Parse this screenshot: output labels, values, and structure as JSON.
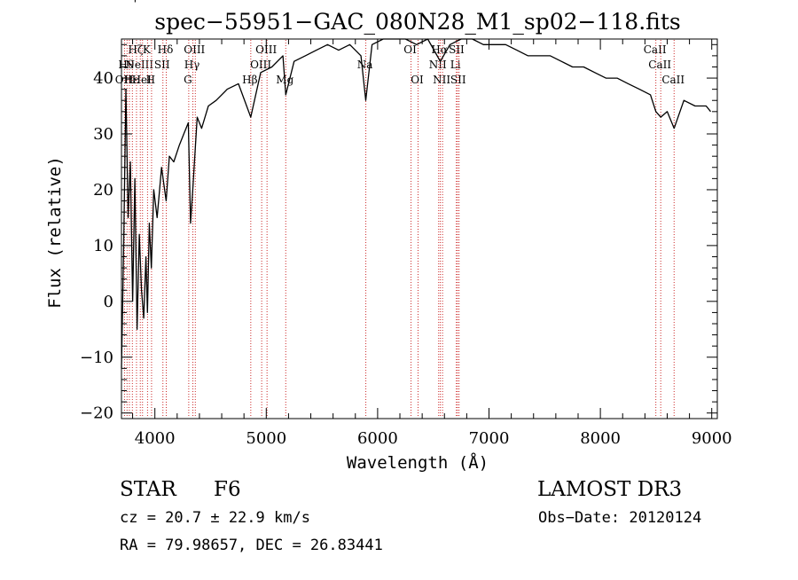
{
  "chart_data": {
    "type": "line",
    "title": "spec−55951−GAC_080N28_M1_sp02−118.fits",
    "xlabel": "Wavelength (Å)",
    "ylabel": "Flux (relative)",
    "xlim": [
      3700,
      9050
    ],
    "ylim": [
      -21,
      47
    ],
    "xticks": [
      4000,
      5000,
      6000,
      7000,
      8000,
      9000
    ],
    "xtick_labels": [
      "4000",
      "5000",
      "6000",
      "7000",
      "8000",
      "9000"
    ],
    "yticks": [
      -20,
      -10,
      0,
      10,
      20,
      30,
      40
    ],
    "ytick_labels": [
      "−20",
      "−10",
      "0",
      "10",
      "20",
      "30",
      "40"
    ],
    "series": [
      {
        "name": "flux",
        "x": [
          3700,
          3720,
          3740,
          3760,
          3780,
          3800,
          3820,
          3840,
          3860,
          3880,
          3900,
          3920,
          3933,
          3950,
          3968,
          3990,
          4020,
          4060,
          4101,
          4130,
          4170,
          4220,
          4260,
          4300,
          4320,
          4340,
          4380,
          4420,
          4480,
          4550,
          4650,
          4750,
          4861,
          4950,
          5050,
          5150,
          5175,
          5250,
          5350,
          5450,
          5550,
          5650,
          5750,
          5850,
          5893,
          5950,
          6050,
          6150,
          6250,
          6350,
          6450,
          6563,
          6650,
          6750,
          6850,
          6950,
          7050,
          7150,
          7250,
          7350,
          7450,
          7550,
          7650,
          7750,
          7850,
          7950,
          8050,
          8150,
          8250,
          8350,
          8450,
          8498,
          8542,
          8600,
          8662,
          8750,
          8850,
          8950,
          8990
        ],
        "y": [
          -12,
          10,
          38,
          15,
          25,
          0,
          22,
          -5,
          12,
          2,
          -3,
          8,
          -2,
          14,
          6,
          20,
          15,
          24,
          18,
          26,
          25,
          28,
          30,
          32,
          14,
          20,
          33,
          31,
          35,
          36,
          38,
          39,
          33,
          41,
          42,
          44,
          37,
          43,
          44,
          45,
          46,
          45,
          46,
          44,
          36,
          46,
          47,
          47,
          47,
          46,
          47,
          43,
          46,
          47,
          47,
          46,
          46,
          46,
          45,
          44,
          44,
          44,
          43,
          42,
          42,
          41,
          40,
          40,
          39,
          38,
          37,
          34,
          33,
          34,
          31,
          36,
          35,
          35,
          34
        ]
      }
    ],
    "line_markers": [
      {
        "wavelength": 3727,
        "label": "OII",
        "row": 2
      },
      {
        "wavelength": 3750,
        "label": "Hθ",
        "row": 1
      },
      {
        "wavelength": 3771,
        "label": "Hη",
        "row": 3
      },
      {
        "wavelength": 3798,
        "label": "Hε",
        "row": 2
      },
      {
        "wavelength": 3835,
        "label": "Hζ",
        "row": 0
      },
      {
        "wavelength": 3869,
        "label": "NeIII",
        "row": 1
      },
      {
        "wavelength": 3889,
        "label": "HeI",
        "row": 2
      },
      {
        "wavelength": 3934,
        "label": "K",
        "row": 0
      },
      {
        "wavelength": 3970,
        "label": "H",
        "row": 2
      },
      {
        "wavelength": 4072,
        "label": "SII",
        "row": 1
      },
      {
        "wavelength": 4102,
        "label": "Hδ",
        "row": 0
      },
      {
        "wavelength": 4304,
        "label": "G",
        "row": 2
      },
      {
        "wavelength": 4341,
        "label": "Hγ",
        "row": 1
      },
      {
        "wavelength": 4363,
        "label": "OIII",
        "row": 0
      },
      {
        "wavelength": 4861,
        "label": "Hβ",
        "row": 2
      },
      {
        "wavelength": 4959,
        "label": "OIII",
        "row": 1
      },
      {
        "wavelength": 5007,
        "label": "OIII",
        "row": 0
      },
      {
        "wavelength": 5175,
        "label": "Mg",
        "row": 2
      },
      {
        "wavelength": 5894,
        "label": "Na",
        "row": 1
      },
      {
        "wavelength": 6300,
        "label": "OI",
        "row": 0
      },
      {
        "wavelength": 6363,
        "label": "OI",
        "row": 2
      },
      {
        "wavelength": 6548,
        "label": "NII",
        "row": 1
      },
      {
        "wavelength": 6563,
        "label": "Hα",
        "row": 0
      },
      {
        "wavelength": 6583,
        "label": "NII",
        "row": 2
      },
      {
        "wavelength": 6707,
        "label": "Li",
        "row": 1
      },
      {
        "wavelength": 6717,
        "label": "SII",
        "row": 0
      },
      {
        "wavelength": 6731,
        "label": "SII",
        "row": 2
      },
      {
        "wavelength": 8498,
        "label": "CaII",
        "row": 0
      },
      {
        "wavelength": 8542,
        "label": "CaII",
        "row": 1
      },
      {
        "wavelength": 8662,
        "label": "CaII",
        "row": 2
      }
    ],
    "marker_color": "#cc2a2a"
  },
  "footer": {
    "object_class": "STAR",
    "subclass": "F6",
    "survey": "LAMOST DR3",
    "redshift": "cz = 20.7 ± 22.9 km/s",
    "obs_date": "Obs−Date: 20120124",
    "coords": "RA =  79.98657, DEC =  26.83441"
  }
}
